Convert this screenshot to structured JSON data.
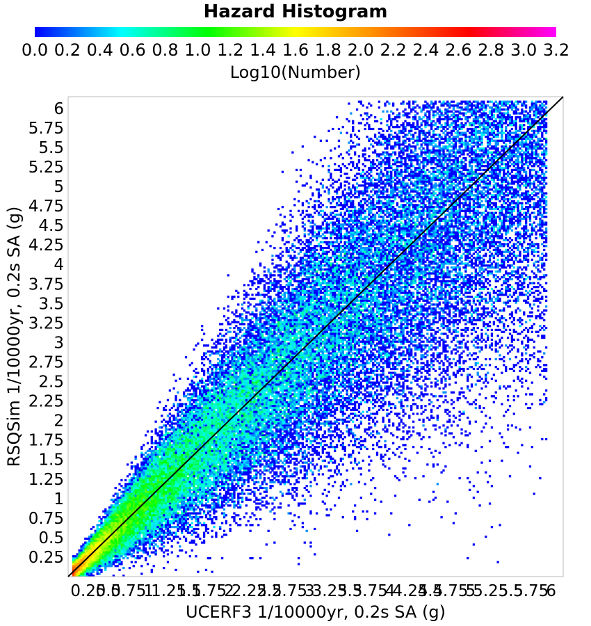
{
  "chart_data": {
    "type": "heatmap",
    "title": "Hazard Histogram",
    "xlabel": "UCERF3 1/10000yr, 0.2s SA (g)",
    "ylabel": "RSQSim 1/10000yr, 0.2s SA (g)",
    "xlim": [
      0,
      6.15
    ],
    "ylim": [
      0,
      6.15
    ],
    "x_ticks": [
      "0.25",
      "0.5",
      "0.75",
      "1",
      "1.25",
      "1.5",
      "1.75",
      "2",
      "2.25",
      "2.5",
      "2.75",
      "3",
      "3.25",
      "3.5",
      "3.75",
      "4",
      "4.25",
      "4.5",
      "4.75",
      "5",
      "5.25",
      "5.5",
      "5.75",
      "6"
    ],
    "y_ticks": [
      "0.25",
      "0.5",
      "0.75",
      "1",
      "1.25",
      "1.5",
      "1.75",
      "2",
      "2.25",
      "2.5",
      "2.75",
      "3",
      "3.25",
      "3.5",
      "3.75",
      "4",
      "4.25",
      "4.5",
      "4.75",
      "5",
      "5.25",
      "5.5",
      "5.75",
      "6"
    ],
    "colorbar": {
      "label": "Log10(Number)",
      "range": [
        0,
        3.2
      ],
      "ticks": [
        "0.0",
        "0.2",
        "0.4",
        "0.6",
        "0.8",
        "1.0",
        "1.2",
        "1.4",
        "1.6",
        "1.8",
        "2.0",
        "2.2",
        "2.4",
        "2.6",
        "2.8",
        "3.0",
        "3.2"
      ],
      "colors": [
        "#0000ff",
        "#00ffff",
        "#00ff00",
        "#ffff00",
        "#ff8000",
        "#ff0000",
        "#ff00ff"
      ]
    },
    "reference_line": {
      "from": [
        0,
        0
      ],
      "to": [
        6.15,
        6.15
      ],
      "color": "#000000"
    },
    "grid": false
  }
}
